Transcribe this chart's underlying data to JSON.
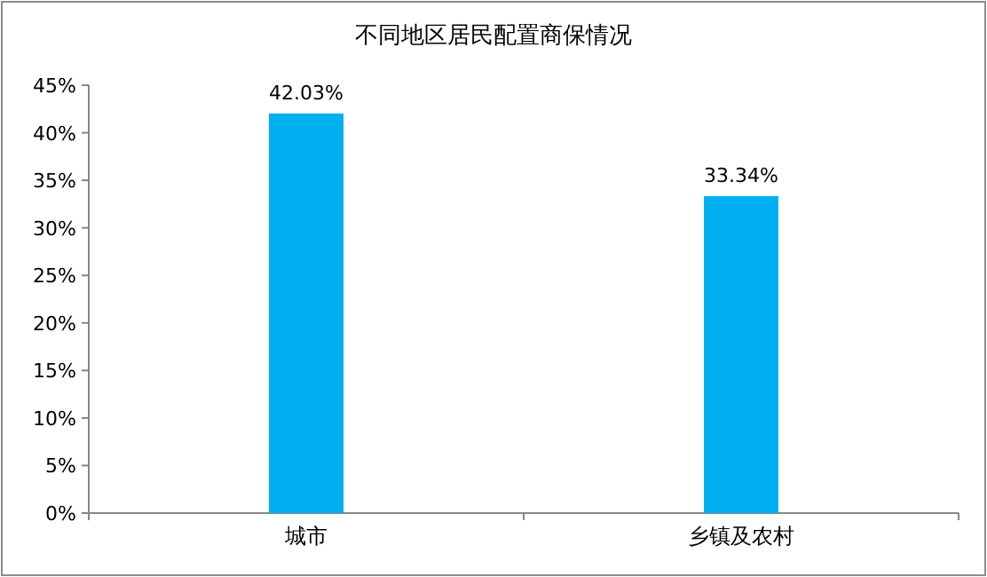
{
  "chart_data": {
    "type": "bar",
    "title": "不同地区居民配置商保情况",
    "categories": [
      "城市",
      "乡镇及农村"
    ],
    "values": [
      42.03,
      33.34
    ],
    "value_labels": [
      "42.03%",
      "33.34%"
    ],
    "color": "#00b0f0",
    "ylim": [
      0,
      45
    ],
    "yticks": [
      {
        "value": 0,
        "label": "0%"
      },
      {
        "value": 5,
        "label": "5%"
      },
      {
        "value": 10,
        "label": "10%"
      },
      {
        "value": 15,
        "label": "15%"
      },
      {
        "value": 20,
        "label": "20%"
      },
      {
        "value": 25,
        "label": "25%"
      },
      {
        "value": 30,
        "label": "30%"
      },
      {
        "value": 35,
        "label": "35%"
      },
      {
        "value": 40,
        "label": "40%"
      },
      {
        "value": 45,
        "label": "45%"
      }
    ],
    "grid": false
  }
}
